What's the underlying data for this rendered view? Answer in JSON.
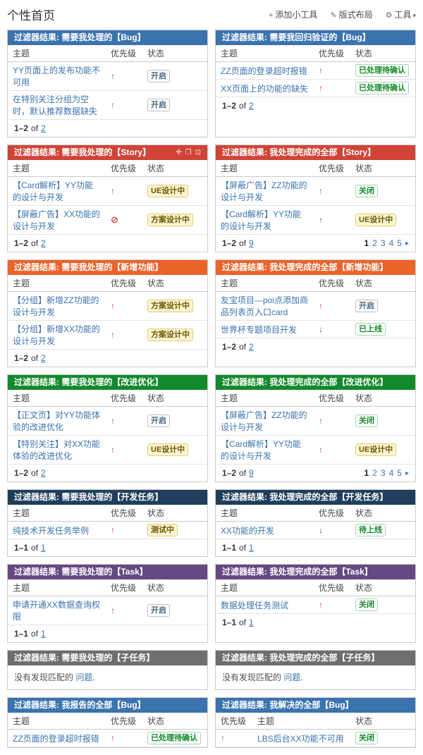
{
  "page": {
    "title": "个性首页",
    "toolbar": {
      "add_gadget": "添加小工具",
      "edit_layout": "版式布局",
      "tools": "工具"
    }
  },
  "icons": {
    "plus": "+",
    "pencil": "✎",
    "gear": "⚙",
    "caret": "▾",
    "drag": "✛",
    "maximize": "❐",
    "menu": "⊡",
    "up": "↑",
    "down": "↓",
    "blocker": "⊘",
    "next": "▸"
  },
  "gadgets": [
    {
      "title": "过滤器结果: 需要我处理的【Bug】",
      "color": "#3b73af",
      "columns": [
        {
          "label": "主题",
          "kind": "subject"
        },
        {
          "label": "优先级",
          "kind": "priority"
        },
        {
          "label": "状态",
          "kind": "status"
        }
      ],
      "rows": [
        {
          "subject": "YY页面上的发布功能不可用",
          "priority": "up",
          "status": "开启",
          "status_type": "blue"
        },
        {
          "subject": "在特别关注分组为空时，默认推荐数据缺失",
          "priority": "up",
          "status": "开启",
          "status_type": "blue"
        }
      ],
      "footer": {
        "range": "1–2",
        "of": "of",
        "total": "2"
      }
    },
    {
      "title": "过滤器结果: 需要我回归验证的【Bug】",
      "color": "#3b73af",
      "columns": [
        {
          "label": "主题",
          "kind": "subject"
        },
        {
          "label": "优先级",
          "kind": "priority"
        },
        {
          "label": "状态",
          "kind": "status"
        }
      ],
      "rows": [
        {
          "subject": "ZZ页面的登录超时报错",
          "priority": "up",
          "status": "已处理待确认",
          "status_type": "green"
        },
        {
          "subject": "XX页面上的功能的缺失",
          "priority": "up",
          "status": "已处理待确认",
          "status_type": "green"
        }
      ],
      "footer": {
        "range": "1–2",
        "of": "of",
        "total": "2"
      }
    },
    {
      "title": "过滤器结果: 需要我处理的【Story】",
      "color": "#d04437",
      "controls": true,
      "columns": [
        {
          "label": "主题",
          "kind": "subject"
        },
        {
          "label": "优先级",
          "kind": "priority"
        },
        {
          "label": "状态",
          "kind": "status"
        }
      ],
      "rows": [
        {
          "subject": "【Card解析】YY功能的设计与开发",
          "priority": "up",
          "status": "UE设计中",
          "status_type": "yellow"
        },
        {
          "subject": "【屏蔽广告】XX功能的设计与开发",
          "priority": "blocker",
          "status": "方案设计中",
          "status_type": "yellow"
        }
      ],
      "footer": {
        "range": "1–2",
        "of": "of",
        "total": "2"
      }
    },
    {
      "title": "过滤器结果: 我处理完成的全部【Story】",
      "color": "#d04437",
      "columns": [
        {
          "label": "主题",
          "kind": "subject"
        },
        {
          "label": "优先级",
          "kind": "priority"
        },
        {
          "label": "状态",
          "kind": "status"
        }
      ],
      "rows": [
        {
          "subject": "【屏蔽广告】ZZ功能的设计与开发",
          "priority": "up",
          "status": "关闭",
          "status_type": "green"
        },
        {
          "subject": "【Card解析】YY功能的设计与开发",
          "priority": "up",
          "status": "UE设计中",
          "status_type": "yellow"
        }
      ],
      "footer": {
        "range": "1–2",
        "of": "of",
        "total": "9"
      },
      "pagination": {
        "current": "1",
        "pages": [
          "2",
          "3",
          "4",
          "5"
        ]
      }
    },
    {
      "title": "过滤器结果: 需要我处理的【新增功能】",
      "color": "#ea632b",
      "columns": [
        {
          "label": "主题",
          "kind": "subject"
        },
        {
          "label": "优先级",
          "kind": "priority"
        },
        {
          "label": "状态",
          "kind": "status"
        }
      ],
      "rows": [
        {
          "subject": "【分组】新增ZZ功能的设计与开发",
          "priority": "up",
          "status": "方案设计中",
          "status_type": "yellow"
        },
        {
          "subject": "【分组】新增XX功能的设计与开发",
          "priority": "up",
          "status": "方案设计中",
          "status_type": "yellow"
        }
      ],
      "footer": {
        "range": "1–2",
        "of": "of",
        "total": "2"
      }
    },
    {
      "title": "过滤器结果: 我处理完成的全部【新增功能】",
      "color": "#ea632b",
      "columns": [
        {
          "label": "主题",
          "kind": "subject"
        },
        {
          "label": "优先级",
          "kind": "priority"
        },
        {
          "label": "状态",
          "kind": "status"
        }
      ],
      "rows": [
        {
          "subject": "友宝项目---poi点添加商品列表页入口card",
          "priority": "up",
          "status": "开启",
          "status_type": "blue"
        },
        {
          "subject": "世界杯专题项目开发",
          "priority": "down",
          "status": "已上线",
          "status_type": "green"
        }
      ],
      "footer": {
        "range": "1–2",
        "of": "of",
        "total": "2"
      }
    },
    {
      "title": "过滤器结果: 需要我处理的【改进优化】",
      "color": "#14892c",
      "columns": [
        {
          "label": "主题",
          "kind": "subject"
        },
        {
          "label": "优先级",
          "kind": "priority"
        },
        {
          "label": "状态",
          "kind": "status"
        }
      ],
      "rows": [
        {
          "subject": "【正文页】对YY功能体验的改进优化",
          "priority": "up",
          "status": "开启",
          "status_type": "blue"
        },
        {
          "subject": "【特别关注】对XX功能体验的改进优化",
          "priority": "up",
          "status": "UE设计中",
          "status_type": "yellow"
        }
      ],
      "footer": {
        "range": "1–2",
        "of": "of",
        "total": "2"
      }
    },
    {
      "title": "过滤器结果: 我处理完成的全部【改进优化】",
      "color": "#14892c",
      "columns": [
        {
          "label": "主题",
          "kind": "subject"
        },
        {
          "label": "优先级",
          "kind": "priority"
        },
        {
          "label": "状态",
          "kind": "status"
        }
      ],
      "rows": [
        {
          "subject": "【屏蔽广告】ZZ功能的设计与开发",
          "priority": "up",
          "status": "关闭",
          "status_type": "green"
        },
        {
          "subject": "【Card解析】YY功能的设计与开发",
          "priority": "up",
          "status": "UE设计中",
          "status_type": "yellow"
        }
      ],
      "footer": {
        "range": "1–2",
        "of": "of",
        "total": "9"
      },
      "pagination": {
        "current": "1",
        "pages": [
          "2",
          "3",
          "4",
          "5"
        ]
      }
    },
    {
      "title": "过滤器结果: 需要我处理的【开发任务】",
      "color": "#1e3e5c",
      "columns": [
        {
          "label": "主题",
          "kind": "subject"
        },
        {
          "label": "优先级",
          "kind": "priority"
        },
        {
          "label": "状态",
          "kind": "status"
        }
      ],
      "rows": [
        {
          "subject": "纯技术开发任务举例",
          "priority": "up",
          "status": "测试中",
          "status_type": "yellow"
        }
      ],
      "footer": {
        "range": "1–1",
        "of": "of",
        "total": "1"
      }
    },
    {
      "title": "过滤器结果: 我处理完成的全部【开发任务】",
      "color": "#1e3e5c",
      "columns": [
        {
          "label": "主题",
          "kind": "subject"
        },
        {
          "label": "优先级",
          "kind": "priority"
        },
        {
          "label": "状态",
          "kind": "status"
        }
      ],
      "rows": [
        {
          "subject": "XX功能的开发",
          "priority": "down",
          "status": "待上线",
          "status_type": "green"
        }
      ],
      "footer": {
        "range": "1–1",
        "of": "of",
        "total": "1"
      }
    },
    {
      "title": "过滤器结果: 需要我处理的【Task】",
      "color": "#654982",
      "columns": [
        {
          "label": "主题",
          "kind": "subject"
        },
        {
          "label": "优先级",
          "kind": "priority"
        },
        {
          "label": "状态",
          "kind": "status"
        }
      ],
      "rows": [
        {
          "subject": "申请开通XX数据查询权限",
          "priority": "up",
          "status": "开启",
          "status_type": "blue"
        }
      ],
      "footer": {
        "range": "1–1",
        "of": "of",
        "total": "1"
      }
    },
    {
      "title": "过滤器结果: 我处理完成的全部【Task】",
      "color": "#654982",
      "columns": [
        {
          "label": "主题",
          "kind": "subject"
        },
        {
          "label": "优先级",
          "kind": "priority"
        },
        {
          "label": "状态",
          "kind": "status"
        }
      ],
      "rows": [
        {
          "subject": "数据处理任务测试",
          "priority": "up",
          "status": "关闭",
          "status_type": "green"
        }
      ],
      "footer": {
        "range": "1–1",
        "of": "of",
        "total": "1"
      }
    },
    {
      "title": "过滤器结果: 需要我处理的【子任务】",
      "color": "#6e6e6e",
      "empty": {
        "text": "没有发现匹配的",
        "link": "问题",
        "suffix": "."
      }
    },
    {
      "title": "过滤器结果: 我处理完成的全部【子任务】",
      "color": "#6e6e6e",
      "empty": {
        "text": "没有发现匹配的",
        "link": "问题",
        "suffix": "."
      }
    },
    {
      "title": "过滤器结果: 我报告的全部【Bug】",
      "color": "#3b73af",
      "columns": [
        {
          "label": "主题",
          "kind": "subject"
        },
        {
          "label": "优先级",
          "kind": "priority"
        },
        {
          "label": "状态",
          "kind": "status"
        }
      ],
      "rows": [
        {
          "subject": "ZZ页面的登录超时报错",
          "priority": "up",
          "status": "已处理待确认",
          "status_type": "green"
        }
      ]
    },
    {
      "title": "过滤器结果: 我解决的全部【Bug】",
      "color": "#3b73af",
      "columns": [
        {
          "label": "优先级",
          "kind": "priority"
        },
        {
          "label": "主题",
          "kind": "subject"
        },
        {
          "label": "状态",
          "kind": "status"
        }
      ],
      "rows": [
        {
          "subject": "LBS后台XX功能不可用",
          "priority": "up",
          "status": "关闭",
          "status_type": "green"
        }
      ]
    }
  ]
}
